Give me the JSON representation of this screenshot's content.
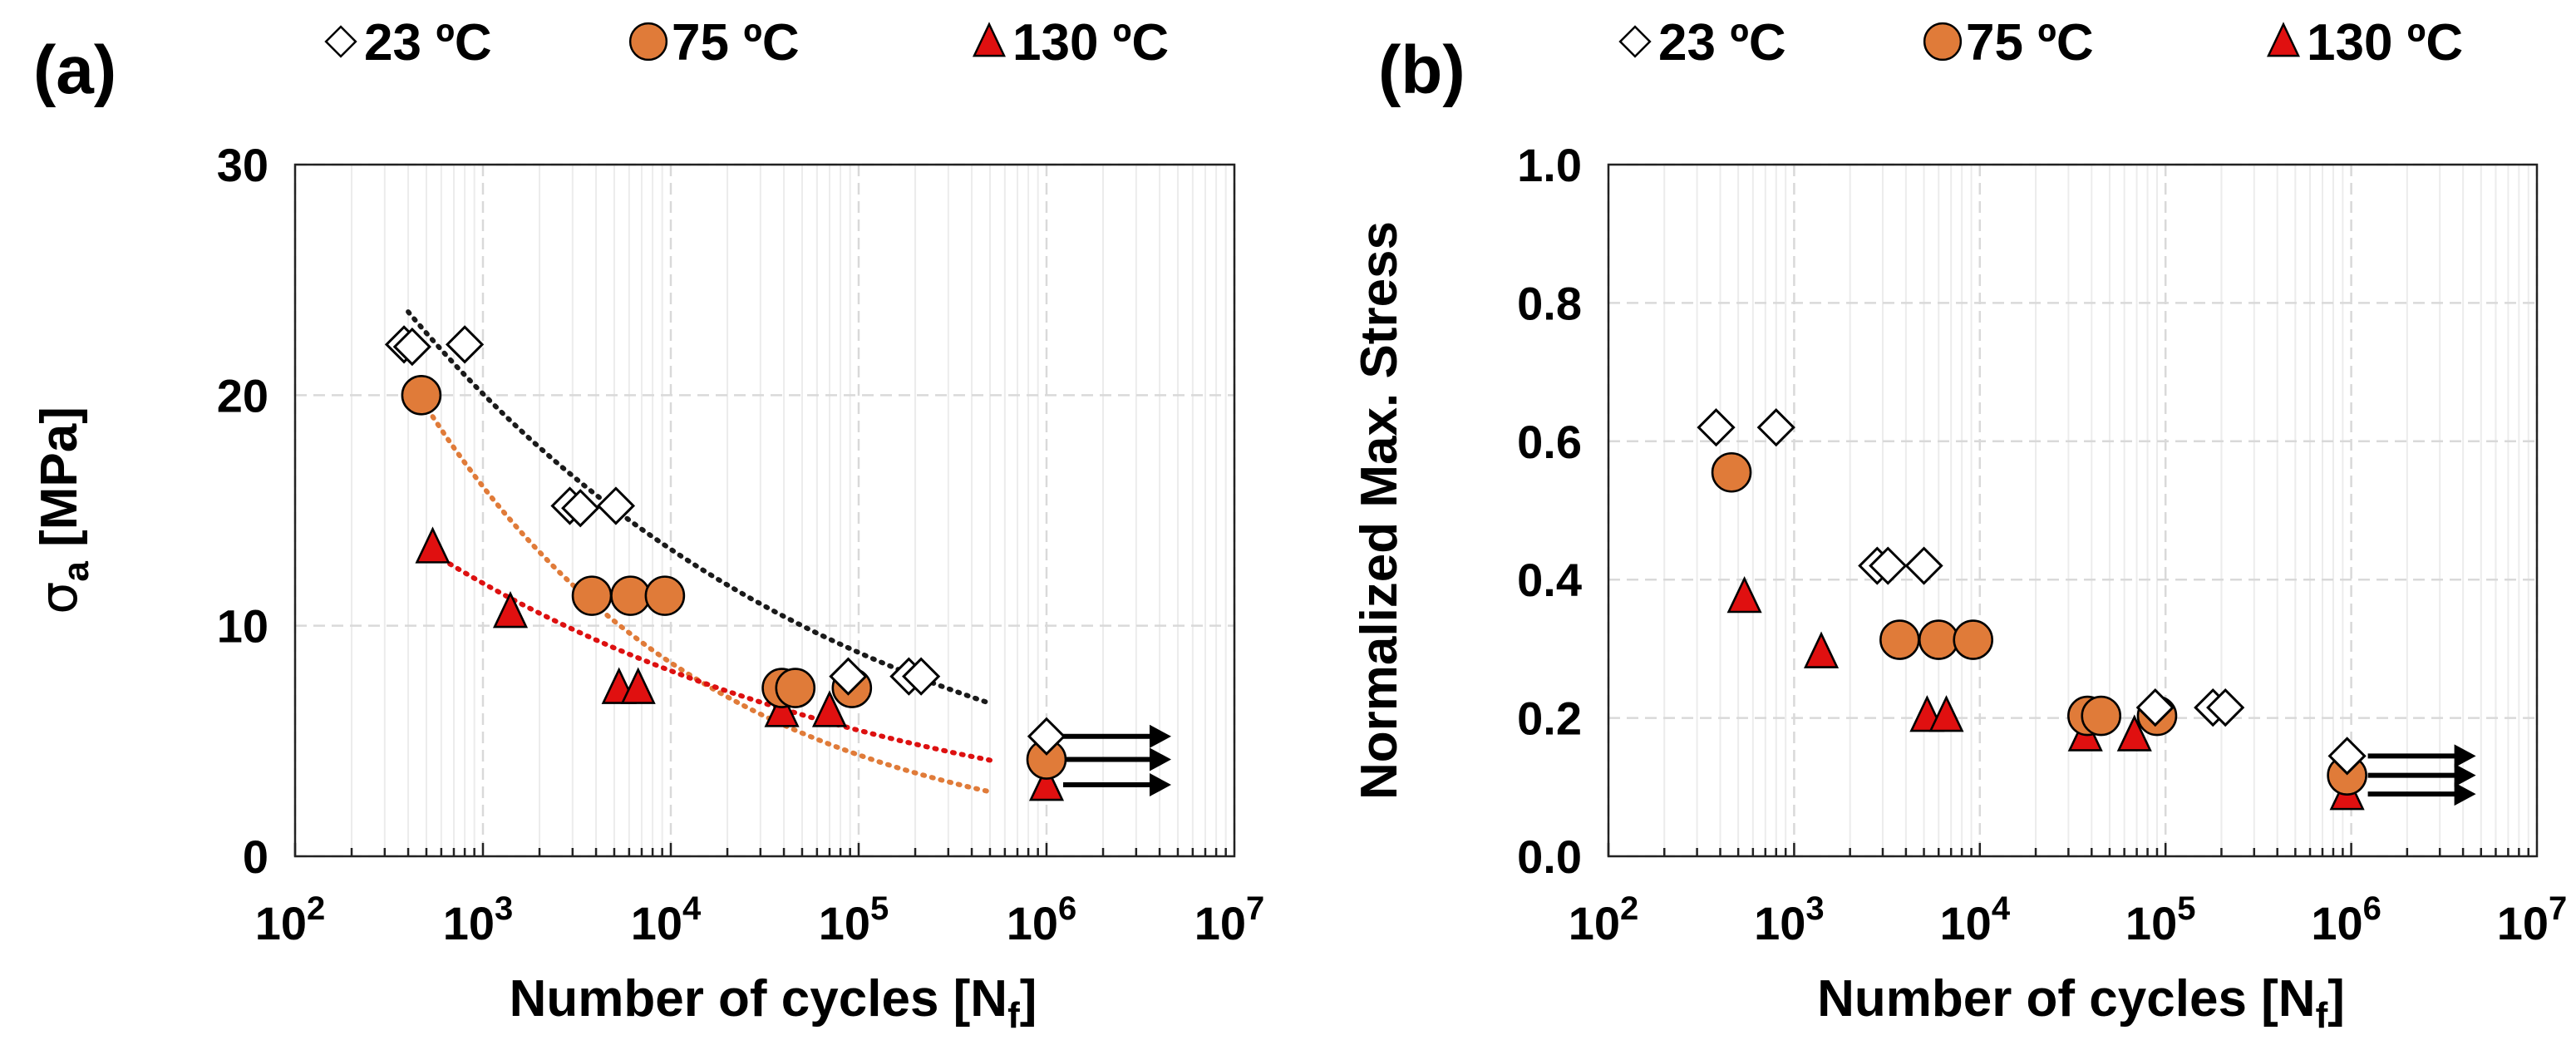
{
  "colors": {
    "c23_fill": "#ffffff",
    "c75_fill": "#e07b39",
    "c130_fill": "#e01010",
    "marker_stroke": "#000000",
    "fit_23": "#1a1a1a",
    "fit_75": "#e07b39",
    "fit_130": "#dd1010",
    "grid": "#d9d9d9",
    "runout_arrow": "#000000"
  },
  "marker_icons": {
    "23 ºC": "diamond-icon",
    "75 ºC": "circle-icon",
    "130 ºC": "triangle-icon"
  },
  "chart_data": [
    {
      "type": "scatter",
      "panel_label": "(a)",
      "xlabel": "Number of cycles [Nf]",
      "xlabel_parts": {
        "main": "Number of cycles [N",
        "sub": "f",
        "close": "]"
      },
      "ylabel": "σa [MPa]",
      "ylabel_parts": {
        "main": "σ",
        "sub": "a",
        "rest": " [MPa]"
      },
      "x_scale": "log",
      "xlim": [
        100,
        10000000
      ],
      "x_ticks": [
        100,
        1000,
        10000,
        100000,
        1000000,
        10000000
      ],
      "x_tick_labels": [
        {
          "base": "10",
          "exp": "2"
        },
        {
          "base": "10",
          "exp": "3"
        },
        {
          "base": "10",
          "exp": "4"
        },
        {
          "base": "10",
          "exp": "5"
        },
        {
          "base": "10",
          "exp": "6"
        },
        {
          "base": "10",
          "exp": "7"
        }
      ],
      "ylim": [
        0,
        30
      ],
      "y_ticks": [
        0,
        10,
        20,
        30
      ],
      "y_tick_labels": [
        "0",
        "10",
        "20",
        "30"
      ],
      "grid": true,
      "legend": [
        "23 ºC",
        "75 ºC",
        "130 ºC"
      ],
      "legend_position": "top",
      "series": [
        {
          "name": "23 ºC",
          "marker": "diamond",
          "points": [
            [
              380,
              22.2
            ],
            [
              420,
              22.1
            ],
            [
              800,
              22.2
            ],
            [
              2900,
              15.2
            ],
            [
              3300,
              15.1
            ],
            [
              5100,
              15.2
            ],
            [
              88000,
              7.8
            ],
            [
              185000,
              7.8
            ],
            [
              215000,
              7.8
            ],
            [
              1000000,
              5.2
            ]
          ],
          "fit": {
            "a": 68.6,
            "b": -0.178,
            "x_range": [
              400,
              500000
            ]
          }
        },
        {
          "name": "75 ºC",
          "marker": "circle",
          "points": [
            [
              470,
              20.0
            ],
            [
              3800,
              11.3
            ],
            [
              6100,
              11.3
            ],
            [
              9300,
              11.3
            ],
            [
              39000,
              7.3
            ],
            [
              46000,
              7.3
            ],
            [
              92000,
              7.3
            ],
            [
              1000000,
              4.2
            ]
          ],
          "fit": {
            "a": 111.7,
            "b": -0.281,
            "x_range": [
              450,
              500000
            ]
          }
        },
        {
          "name": "130 ºC",
          "marker": "triangle",
          "points": [
            [
              540,
              13.4
            ],
            [
              1400,
              10.6
            ],
            [
              5300,
              7.3
            ],
            [
              6700,
              7.3
            ],
            [
              39000,
              6.3
            ],
            [
              70000,
              6.3
            ],
            [
              1000000,
              3.1
            ]
          ],
          "fit": {
            "a": 37.8,
            "b": -0.168,
            "x_range": [
              500,
              500000
            ]
          }
        }
      ],
      "runout_points": [
        {
          "series": "23 ºC",
          "y": 5.2
        },
        {
          "series": "75 ºC",
          "y": 4.2
        },
        {
          "series": "130 ºC",
          "y": 3.1
        }
      ]
    },
    {
      "type": "scatter",
      "panel_label": "(b)",
      "xlabel": "Number of cycles [Nf]",
      "xlabel_parts": {
        "main": "Number of cycles [N",
        "sub": "f",
        "close": "]"
      },
      "ylabel": "Normalized Max. Stress",
      "x_scale": "log",
      "xlim": [
        100,
        10000000
      ],
      "x_ticks": [
        100,
        1000,
        10000,
        100000,
        1000000,
        10000000
      ],
      "x_tick_labels": [
        {
          "base": "10",
          "exp": "2"
        },
        {
          "base": "10",
          "exp": "3"
        },
        {
          "base": "10",
          "exp": "4"
        },
        {
          "base": "10",
          "exp": "5"
        },
        {
          "base": "10",
          "exp": "6"
        },
        {
          "base": "10",
          "exp": "7"
        }
      ],
      "ylim": [
        0,
        1.0
      ],
      "y_ticks": [
        0,
        0.2,
        0.4,
        0.6,
        0.8,
        1.0
      ],
      "y_tick_labels": [
        "0.0",
        "0.2",
        "0.4",
        "0.6",
        "0.8",
        "1.0"
      ],
      "grid": true,
      "legend": [
        "23 ºC",
        "75 ºC",
        "130 ºC"
      ],
      "legend_position": "top",
      "series": [
        {
          "name": "23 ºC",
          "marker": "diamond",
          "points": [
            [
              380,
              0.62
            ],
            [
              800,
              0.62
            ],
            [
              2800,
              0.42
            ],
            [
              3200,
              0.42
            ],
            [
              5000,
              0.42
            ],
            [
              88000,
              0.215
            ],
            [
              180000,
              0.215
            ],
            [
              210000,
              0.215
            ],
            [
              950000,
              0.145
            ]
          ]
        },
        {
          "name": "75 ºC",
          "marker": "circle",
          "points": [
            [
              460,
              0.555
            ],
            [
              3700,
              0.313
            ],
            [
              6000,
              0.313
            ],
            [
              9200,
              0.313
            ],
            [
              38000,
              0.203
            ],
            [
              45000,
              0.203
            ],
            [
              90000,
              0.203
            ],
            [
              950000,
              0.117
            ]
          ]
        },
        {
          "name": "130 ºC",
          "marker": "triangle",
          "points": [
            [
              540,
              0.375
            ],
            [
              1400,
              0.295
            ],
            [
              5200,
              0.203
            ],
            [
              6600,
              0.203
            ],
            [
              37000,
              0.175
            ],
            [
              68000,
              0.175
            ],
            [
              950000,
              0.09
            ]
          ]
        }
      ],
      "runout_points": [
        {
          "series": "23 ºC",
          "y": 0.145
        },
        {
          "series": "75 ºC",
          "y": 0.117
        },
        {
          "series": "130 ºC",
          "y": 0.09
        }
      ]
    }
  ]
}
